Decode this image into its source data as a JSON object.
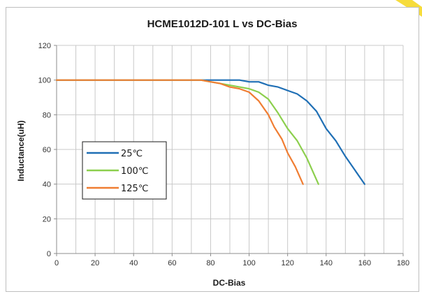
{
  "chart_data": {
    "type": "line",
    "title": "HCME1012D-101 L vs DC-Bias",
    "xlabel": "DC-Bias",
    "ylabel": "Inductance(uH)",
    "xlim": [
      0,
      180
    ],
    "ylim": [
      0,
      120
    ],
    "x_ticks": [
      0,
      20,
      40,
      60,
      80,
      100,
      120,
      140,
      160,
      180
    ],
    "y_ticks": [
      0,
      20,
      40,
      60,
      80,
      100,
      120
    ],
    "grid": true,
    "legend_placement": "center-left",
    "series": [
      {
        "name": "25℃",
        "color": "#1f6fb5",
        "points": [
          [
            0,
            100
          ],
          [
            20,
            100
          ],
          [
            40,
            100
          ],
          [
            60,
            100
          ],
          [
            80,
            100
          ],
          [
            90,
            100
          ],
          [
            95,
            100
          ],
          [
            100,
            99
          ],
          [
            105,
            99
          ],
          [
            110,
            97
          ],
          [
            115,
            96
          ],
          [
            120,
            94
          ],
          [
            125,
            92
          ],
          [
            130,
            88
          ],
          [
            135,
            82
          ],
          [
            140,
            72
          ],
          [
            145,
            65
          ],
          [
            150,
            56
          ],
          [
            155,
            48
          ],
          [
            160,
            40
          ]
        ]
      },
      {
        "name": "100℃",
        "color": "#8ccf4d",
        "points": [
          [
            0,
            100
          ],
          [
            20,
            100
          ],
          [
            40,
            100
          ],
          [
            60,
            100
          ],
          [
            75,
            100
          ],
          [
            80,
            99
          ],
          [
            85,
            98
          ],
          [
            90,
            97
          ],
          [
            95,
            96
          ],
          [
            100,
            95
          ],
          [
            105,
            93
          ],
          [
            110,
            89
          ],
          [
            115,
            81
          ],
          [
            120,
            72
          ],
          [
            125,
            65
          ],
          [
            130,
            55
          ],
          [
            136,
            40
          ]
        ]
      },
      {
        "name": "125℃",
        "color": "#f07d32",
        "points": [
          [
            0,
            100
          ],
          [
            20,
            100
          ],
          [
            40,
            100
          ],
          [
            60,
            100
          ],
          [
            75,
            100
          ],
          [
            80,
            99
          ],
          [
            85,
            98
          ],
          [
            90,
            96
          ],
          [
            95,
            95
          ],
          [
            100,
            93
          ],
          [
            105,
            88
          ],
          [
            110,
            80
          ],
          [
            113,
            73
          ],
          [
            117,
            66
          ],
          [
            120,
            58
          ],
          [
            124,
            50
          ],
          [
            128,
            40
          ]
        ]
      }
    ]
  },
  "watermark_color": "#f5d61a"
}
